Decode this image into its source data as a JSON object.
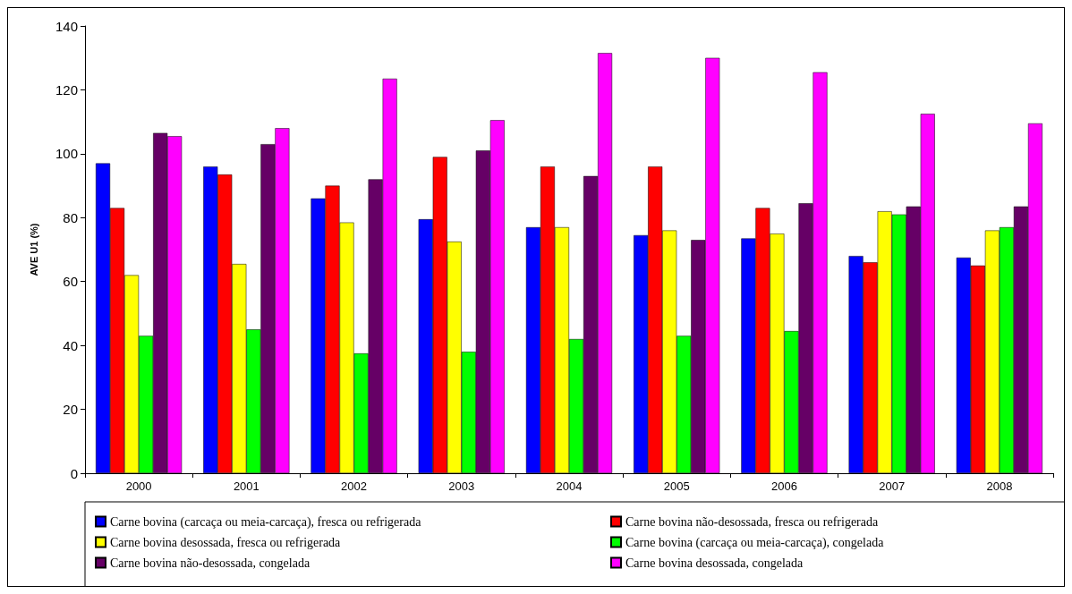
{
  "chart_data": {
    "type": "bar",
    "ylabel": "AVE U1 (%)",
    "categories": [
      "2000",
      "2001",
      "2002",
      "2003",
      "2004",
      "2005",
      "2006",
      "2007",
      "2008"
    ],
    "ylim": [
      0,
      140
    ],
    "yticks": [
      0,
      20,
      40,
      60,
      80,
      100,
      120,
      140
    ],
    "grid": false,
    "legend": "bottom",
    "series": [
      {
        "name": "Carne bovina (carcaça ou meia-carcaça), fresca ou refrigerada",
        "color": "#0000ff",
        "values": [
          97,
          96,
          86,
          79.5,
          77,
          74.5,
          73.5,
          68,
          67.5
        ]
      },
      {
        "name": "Carne bovina não-desossada, fresca ou refrigerada",
        "color": "#ff0000",
        "values": [
          83,
          93.5,
          90,
          99,
          96,
          96,
          83,
          66,
          65
        ]
      },
      {
        "name": "Carne bovina desossada, fresca ou refrigerada",
        "color": "#ffff00",
        "values": [
          62,
          65.5,
          78.5,
          72.5,
          77,
          76,
          75,
          82,
          76
        ]
      },
      {
        "name": "Carne bovina (carcaça ou meia-carcaça), congelada",
        "color": "#00ff00",
        "values": [
          43,
          45,
          37.5,
          38,
          42,
          43,
          44.5,
          81,
          77
        ]
      },
      {
        "name": "Carne bovina não-desossada, congelada",
        "color": "#660066",
        "values": [
          106.5,
          103,
          92,
          101,
          93,
          73,
          84.5,
          83.5,
          83.5
        ]
      },
      {
        "name": "Carne bovina desossada, congelada",
        "color": "#ff00ff",
        "values": [
          105.5,
          108,
          123.5,
          110.5,
          131.5,
          130,
          125.5,
          112.5,
          109.5
        ]
      }
    ]
  }
}
